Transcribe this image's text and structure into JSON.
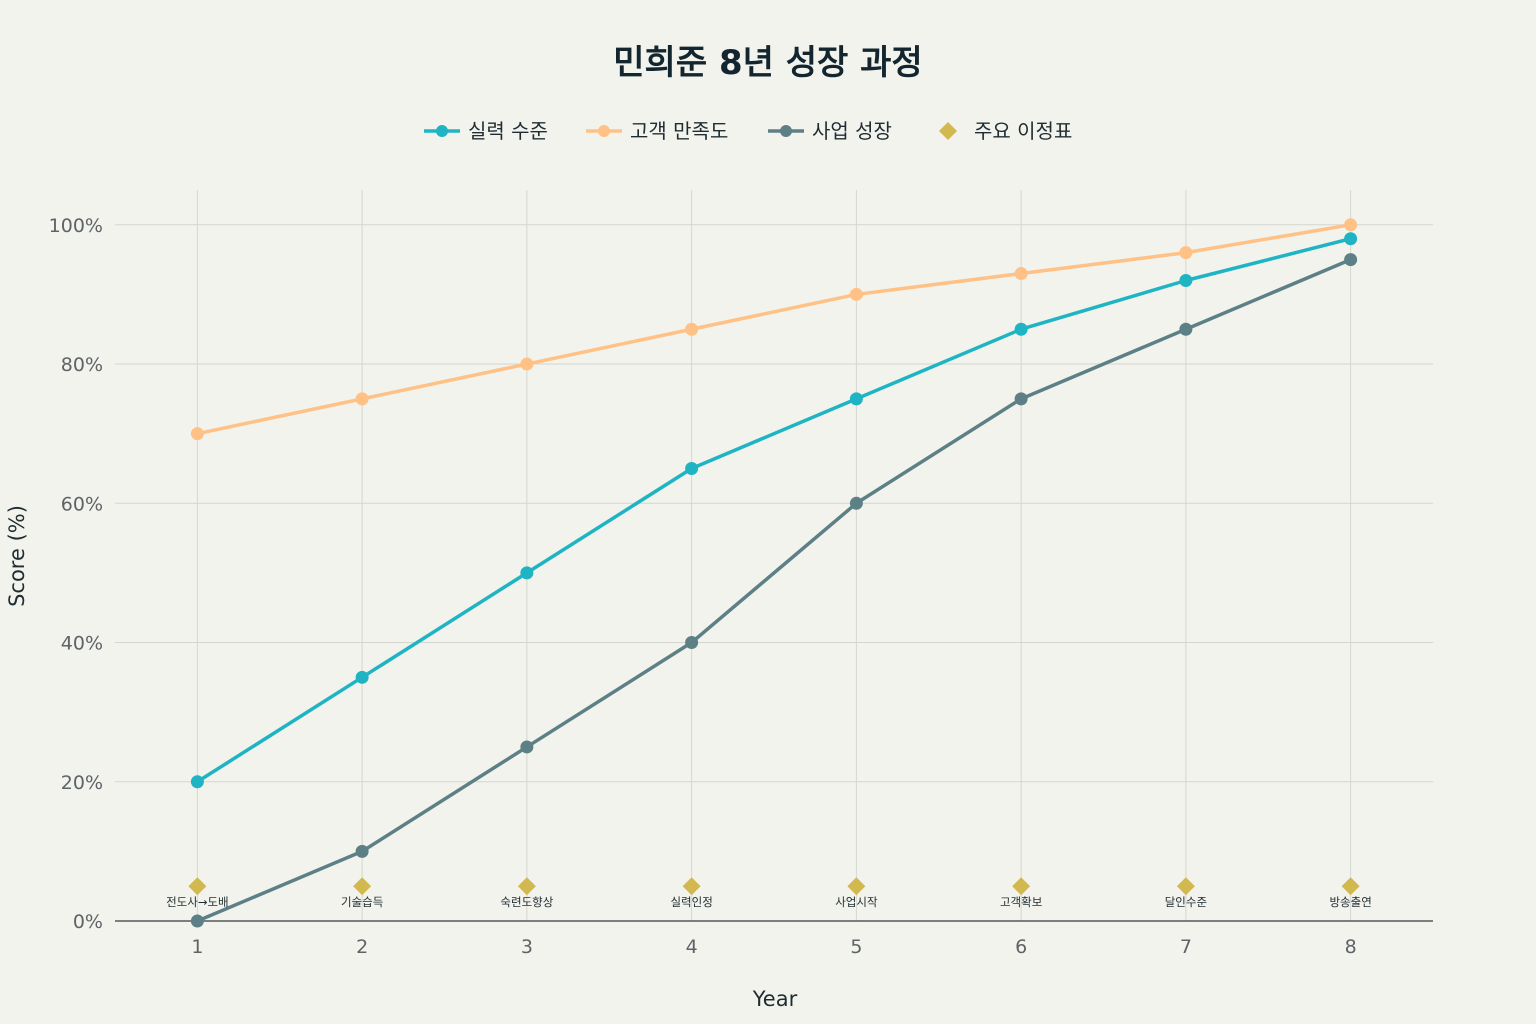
{
  "chart_data": {
    "type": "line",
    "title": "민희준 8년 성장 과정",
    "xlabel": "Year",
    "ylabel": "Score (%)",
    "x": [
      1,
      2,
      3,
      4,
      5,
      6,
      7,
      8
    ],
    "xlim": [
      0.5,
      8.5
    ],
    "ylim": [
      0,
      105
    ],
    "yticks": [
      0,
      20,
      40,
      60,
      80,
      100
    ],
    "ytick_labels": [
      "0%",
      "20%",
      "40%",
      "60%",
      "80%",
      "100%"
    ],
    "grid": true,
    "legend_position": "top-center",
    "series": [
      {
        "name": "실력 수준",
        "color": "#1fb4c4",
        "values": [
          20,
          35,
          50,
          65,
          75,
          85,
          92,
          98
        ]
      },
      {
        "name": "고객 만족도",
        "color": "#ffc185",
        "values": [
          70,
          75,
          80,
          85,
          90,
          93,
          96,
          100
        ]
      },
      {
        "name": "사업 성장",
        "color": "#5d8087",
        "values": [
          0,
          10,
          25,
          40,
          60,
          75,
          85,
          95
        ]
      }
    ],
    "milestones": {
      "name": "주요 이정표",
      "color": "#d1b84f",
      "y": 5,
      "labels": [
        "전도사→도배",
        "기술습득",
        "숙련도향상",
        "실력인정",
        "사업시작",
        "고객확보",
        "달인수준",
        "방송출연"
      ]
    }
  }
}
